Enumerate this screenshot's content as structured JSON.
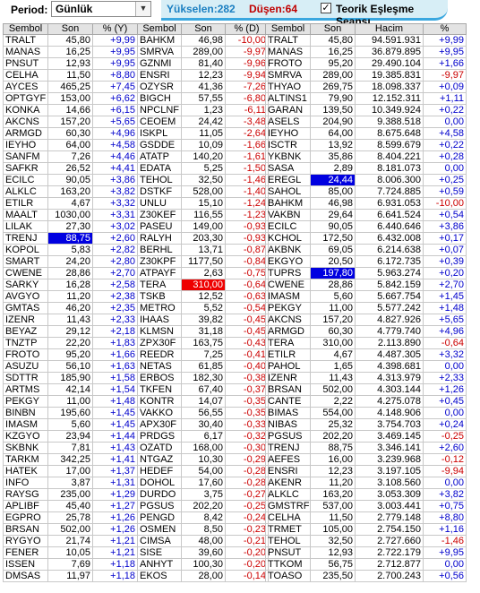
{
  "toolbar": {
    "period_label": "Period:",
    "period_value": "Günlük",
    "rising": "Yükselen:282",
    "falling": "Düşen:64",
    "theoretic_label": "Teorik Eşleşme Seansı",
    "theoretic_checked": true
  },
  "gainers": {
    "headers": [
      "Sembol",
      "Son",
      "% (Y)"
    ],
    "rows": [
      [
        "TRALT",
        "45,80",
        "+9,99"
      ],
      [
        "MANAS",
        "16,25",
        "+9,95"
      ],
      [
        "PNSUT",
        "12,93",
        "+9,95"
      ],
      [
        "CELHA",
        "11,50",
        "+8,80"
      ],
      [
        "AYCES",
        "465,25",
        "+7,45"
      ],
      [
        "OPTGYF",
        "153,00",
        "+6,62"
      ],
      [
        "KONKA",
        "14,66",
        "+6,15"
      ],
      [
        "AKCNS",
        "157,20",
        "+5,65"
      ],
      [
        "ARMGD",
        "60,30",
        "+4,96"
      ],
      [
        "IEYHO",
        "64,00",
        "+4,58"
      ],
      [
        "SANFM",
        "7,26",
        "+4,46"
      ],
      [
        "SAFKR",
        "26,52",
        "+4,41"
      ],
      [
        "ECILC",
        "90,05",
        "+3,86"
      ],
      [
        "ALKLC",
        "163,20",
        "+3,82"
      ],
      [
        "ETILR",
        "4,67",
        "+3,32"
      ],
      [
        "MAALT",
        "1030,00",
        "+3,31"
      ],
      [
        "LILAK",
        "27,30",
        "+3,02"
      ],
      [
        "TRENJ",
        "88,75",
        "+2,60"
      ],
      [
        "KOPOL",
        "5,83",
        "+2,82"
      ],
      [
        "SMART",
        "24,20",
        "+2,80"
      ],
      [
        "CWENE",
        "28,86",
        "+2,70"
      ],
      [
        "SARKY",
        "16,28",
        "+2,58"
      ],
      [
        "AVGYO",
        "11,20",
        "+2,38"
      ],
      [
        "GMTAS",
        "46,20",
        "+2,35"
      ],
      [
        "IZENR",
        "11,43",
        "+2,33"
      ],
      [
        "BEYAZ",
        "29,12",
        "+2,18"
      ],
      [
        "TNZTP",
        "22,20",
        "+1,83"
      ],
      [
        "FROTO",
        "95,20",
        "+1,66"
      ],
      [
        "ASUZU",
        "56,10",
        "+1,63"
      ],
      [
        "SDTTR",
        "185,90",
        "+1,58"
      ],
      [
        "ARTMS",
        "42,14",
        "+1,54"
      ],
      [
        "PEKGY",
        "11,00",
        "+1,48"
      ],
      [
        "BINBN",
        "195,60",
        "+1,45"
      ],
      [
        "IMASM",
        "5,60",
        "+1,45"
      ],
      [
        "KZGYO",
        "23,94",
        "+1,44"
      ],
      [
        "SKBNK",
        "7,81",
        "+1,43"
      ],
      [
        "TARKM",
        "342,25",
        "+1,41"
      ],
      [
        "HATEK",
        "17,00",
        "+1,37"
      ],
      [
        "INFO",
        "3,87",
        "+1,31"
      ],
      [
        "RAYSG",
        "235,00",
        "+1,29"
      ],
      [
        "APLIBF",
        "45,40",
        "+1,27"
      ],
      [
        "EGPRO",
        "25,78",
        "+1,26"
      ],
      [
        "BRSAN",
        "502,00",
        "+1,26"
      ],
      [
        "RYGYO",
        "21,74",
        "+1,21"
      ],
      [
        "FENER",
        "10,05",
        "+1,21"
      ],
      [
        "ISSEN",
        "7,69",
        "+1,18"
      ],
      [
        "DMSAS",
        "11,97",
        "+1,18"
      ]
    ],
    "highlight_row": 17
  },
  "losers": {
    "headers": [
      "Sembol",
      "Son",
      "% (D)"
    ],
    "rows": [
      [
        "BAHKM",
        "46,98",
        "-10,00"
      ],
      [
        "SMRVA",
        "289,00",
        "-9,97"
      ],
      [
        "GZNMI",
        "81,40",
        "-9,96"
      ],
      [
        "ENSRI",
        "12,23",
        "-9,94"
      ],
      [
        "OZYSR",
        "41,36",
        "-7,26"
      ],
      [
        "BIGCH",
        "57,55",
        "-6,80"
      ],
      [
        "NPCLNF",
        "1,23",
        "-6,11"
      ],
      [
        "CEOEM",
        "24,42",
        "-3,48"
      ],
      [
        "ISKPL",
        "11,05",
        "-2,64"
      ],
      [
        "GSDDE",
        "10,09",
        "-1,66"
      ],
      [
        "ATATP",
        "140,20",
        "-1,61"
      ],
      [
        "EDATA",
        "5,25",
        "-1,50"
      ],
      [
        "TEHOL",
        "32,50",
        "-1,46"
      ],
      [
        "DSTKF",
        "528,00",
        "-1,40"
      ],
      [
        "UNLU",
        "15,10",
        "-1,24"
      ],
      [
        "Z30KEF",
        "116,55",
        "-1,23"
      ],
      [
        "PASEU",
        "149,00",
        "-0,93"
      ],
      [
        "RALYH",
        "203,30",
        "-0,93"
      ],
      [
        "BERHL",
        "13,71",
        "-0,87"
      ],
      [
        "Z30KPF",
        "1177,50",
        "-0,84"
      ],
      [
        "ATPAYF",
        "2,63",
        "-0,75"
      ],
      [
        "TERA",
        "310,00",
        "-0,64"
      ],
      [
        "TSKB",
        "12,52",
        "-0,63"
      ],
      [
        "METRO",
        "5,52",
        "-0,54"
      ],
      [
        "IHAAS",
        "39,82",
        "-0,45"
      ],
      [
        "KLMSN",
        "31,18",
        "-0,45"
      ],
      [
        "ZPX30F",
        "163,75",
        "-0,43"
      ],
      [
        "REEDR",
        "7,25",
        "-0,41"
      ],
      [
        "NETAS",
        "61,85",
        "-0,40"
      ],
      [
        "ERBOS",
        "182,30",
        "-0,38"
      ],
      [
        "TKFEN",
        "67,40",
        "-0,37"
      ],
      [
        "KONTR",
        "14,07",
        "-0,35"
      ],
      [
        "VAKKO",
        "56,55",
        "-0,35"
      ],
      [
        "APX30F",
        "30,40",
        "-0,33"
      ],
      [
        "PRDGS",
        "6,17",
        "-0,32"
      ],
      [
        "OZATD",
        "168,00",
        "-0,30"
      ],
      [
        "NTGAZ",
        "10,30",
        "-0,29"
      ],
      [
        "HEDEF",
        "54,00",
        "-0,28"
      ],
      [
        "DOHOL",
        "17,60",
        "-0,28"
      ],
      [
        "DURDO",
        "3,75",
        "-0,27"
      ],
      [
        "PGSUS",
        "202,20",
        "-0,25"
      ],
      [
        "PENGD",
        "8,42",
        "-0,24"
      ],
      [
        "OSMEN",
        "8,50",
        "-0,23"
      ],
      [
        "CIMSA",
        "48,00",
        "-0,21"
      ],
      [
        "SISE",
        "39,60",
        "-0,20"
      ],
      [
        "ANHYT",
        "100,30",
        "-0,20"
      ],
      [
        "EKOS",
        "28,00",
        "-0,14"
      ]
    ],
    "highlight_row": 21
  },
  "volume": {
    "headers": [
      "Sembol",
      "Son",
      "Hacim",
      "%"
    ],
    "rows": [
      [
        "TRALT",
        "45,80",
        "94.591.931",
        "+9,99"
      ],
      [
        "MANAS",
        "16,25",
        "36.879.895",
        "+9,95"
      ],
      [
        "FROTO",
        "95,20",
        "29.490.104",
        "+1,66"
      ],
      [
        "SMRVA",
        "289,00",
        "19.385.831",
        "-9,97"
      ],
      [
        "THYAO",
        "269,75",
        "18.098.337",
        "+0,09"
      ],
      [
        "ALTINS1",
        "79,90",
        "12.152.311",
        "+1,11"
      ],
      [
        "GARAN",
        "139,50",
        "10.349.924",
        "+0,22"
      ],
      [
        "ASELS",
        "204,90",
        "9.388.518",
        "0,00"
      ],
      [
        "IEYHO",
        "64,00",
        "8.675.648",
        "+4,58"
      ],
      [
        "ISCTR",
        "13,92",
        "8.599.679",
        "+0,22"
      ],
      [
        "YKBNK",
        "35,86",
        "8.404.221",
        "+0,28"
      ],
      [
        "SASA",
        "2,89",
        "8.181.073",
        "0,00"
      ],
      [
        "EREGL",
        "24,44",
        "8.006.300",
        "+0,25"
      ],
      [
        "SAHOL",
        "85,00",
        "7.724.885",
        "+0,59"
      ],
      [
        "BAHKM",
        "46,98",
        "6.931.053",
        "-10,00"
      ],
      [
        "VAKBN",
        "29,64",
        "6.641.524",
        "+0,54"
      ],
      [
        "ECILC",
        "90,05",
        "6.440.646",
        "+3,86"
      ],
      [
        "KCHOL",
        "172,50",
        "6.432.008",
        "+0,17"
      ],
      [
        "AKBNK",
        "69,05",
        "6.214.638",
        "+0,07"
      ],
      [
        "EKGYO",
        "20,50",
        "6.172.735",
        "+0,39"
      ],
      [
        "TUPRS",
        "197,80",
        "5.963.274",
        "+0,20"
      ],
      [
        "CWENE",
        "28,86",
        "5.842.159",
        "+2,70"
      ],
      [
        "IMASM",
        "5,60",
        "5.667.754",
        "+1,45"
      ],
      [
        "PEKGY",
        "11,00",
        "5.577.242",
        "+1,48"
      ],
      [
        "AKCNS",
        "157,20",
        "4.827.926",
        "+5,65"
      ],
      [
        "ARMGD",
        "60,30",
        "4.779.740",
        "+4,96"
      ],
      [
        "TERA",
        "310,00",
        "2.113.890",
        "-0,64"
      ],
      [
        "ETILR",
        "4,67",
        "4.487.305",
        "+3,32"
      ],
      [
        "PAHOL",
        "1,65",
        "4.398.681",
        "0,00"
      ],
      [
        "IZENR",
        "11,43",
        "4.313.979",
        "+2,33"
      ],
      [
        "BRSAN",
        "502,00",
        "4.303.144",
        "+1,26"
      ],
      [
        "CANTE",
        "2,22",
        "4.275.078",
        "+0,45"
      ],
      [
        "BIMAS",
        "554,00",
        "4.148.906",
        "0,00"
      ],
      [
        "NIBAS",
        "25,32",
        "3.754.703",
        "+0,24"
      ],
      [
        "PGSUS",
        "202,20",
        "3.469.145",
        "-0,25"
      ],
      [
        "TRENJ",
        "88,75",
        "3.346.141",
        "+2,60"
      ],
      [
        "AEFES",
        "16,00",
        "3.239.968",
        "-0,12"
      ],
      [
        "ENSRI",
        "12,23",
        "3.197.105",
        "-9,94"
      ],
      [
        "AKENR",
        "11,20",
        "3.108.560",
        "0,00"
      ],
      [
        "ALKLC",
        "163,20",
        "3.053.309",
        "+3,82"
      ],
      [
        "GMSTRF",
        "537,00",
        "3.003.441",
        "+0,75"
      ],
      [
        "CELHA",
        "11,50",
        "2.779.148",
        "+8,80"
      ],
      [
        "TRMET",
        "105,00",
        "2.754.150",
        "+1,16"
      ],
      [
        "TEHOL",
        "32,50",
        "2.727.660",
        "-1,46"
      ],
      [
        "PNSUT",
        "12,93",
        "2.722.179",
        "+9,95"
      ],
      [
        "TTKOM",
        "56,75",
        "2.712.877",
        "0,00"
      ],
      [
        "TOASO",
        "235,50",
        "2.700.243",
        "+0,56"
      ]
    ],
    "highlight_blue_rows": [
      12,
      20
    ],
    "highlight_color_blue": "#0000e0",
    "highlight_color_red": "#ee0000"
  }
}
